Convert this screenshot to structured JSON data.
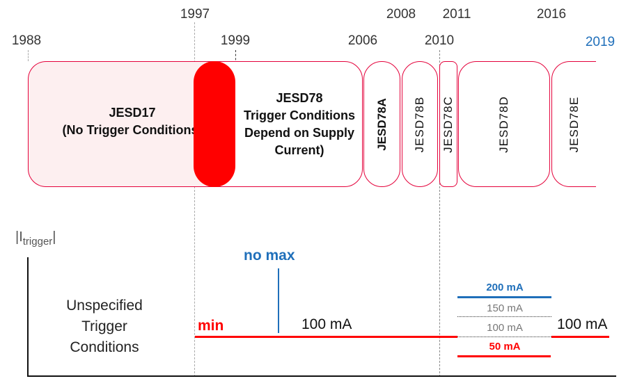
{
  "years": {
    "y1988": "1988",
    "y1997": "1997",
    "y1999": "1999",
    "y2006": "2006",
    "y2008": "2008",
    "y2010": "2010",
    "y2011": "2011",
    "y2016": "2016",
    "y2019": "2019"
  },
  "standards": {
    "jesd17": {
      "title": "JESD17",
      "subtitle": "(No Trigger Conditions)"
    },
    "jesd78": {
      "title": "JESD78",
      "line1": "Trigger Conditions",
      "line2": "Depend on Supply",
      "line3": "Current)"
    },
    "jesd78a": "JESD78A",
    "jesd78b": "JESD78B",
    "jesd78c": "JESD78C",
    "jesd78d": "JESD78D",
    "jesd78e": "JESD78E"
  },
  "axis": {
    "label_main": "|I",
    "label_sub": "trigger",
    "label_end": "|"
  },
  "unspecified": [
    "Unspecified",
    "Trigger",
    "Conditions"
  ],
  "labels": {
    "min": "min",
    "no_max": "no max",
    "i100": "100 mA",
    "i200": "200 mA",
    "i150": "150 mA",
    "i100b": "100 mA",
    "i50": "50 mA",
    "i100c": "100 mA"
  },
  "colors": {
    "red": "#ff0000",
    "blue": "#1f6fba",
    "border": "#e4003a",
    "pink": "#fdeff0"
  }
}
